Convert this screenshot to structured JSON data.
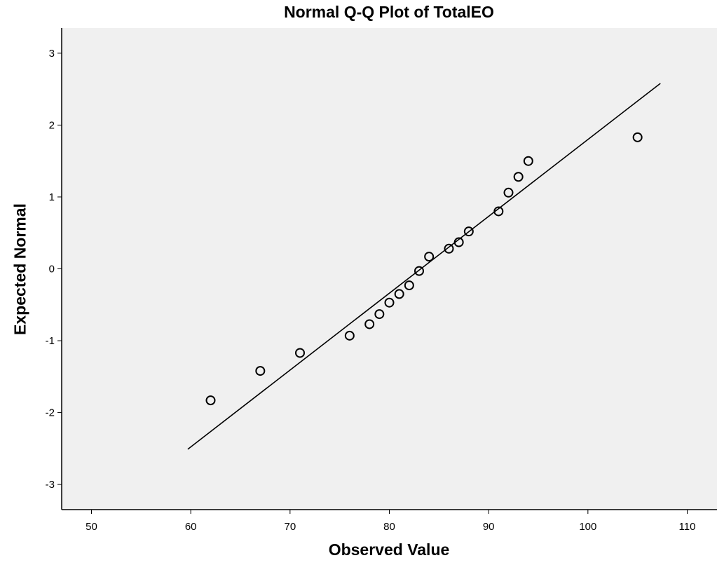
{
  "chart_data": {
    "type": "scatter",
    "title": "Normal Q-Q Plot of TotalEO",
    "xlabel": "Observed Value",
    "ylabel": "Expected Normal",
    "xlim": [
      47,
      113
    ],
    "ylim": [
      -3.35,
      3.35
    ],
    "xticks": [
      50,
      60,
      70,
      80,
      90,
      100,
      110
    ],
    "yticks": [
      -3,
      -2,
      -1,
      0,
      1,
      2,
      3
    ],
    "xtick_labels": [
      "50",
      "60",
      "70",
      "80",
      "90",
      "100",
      "110"
    ],
    "ytick_labels": [
      "-3",
      "-2",
      "-1",
      "0",
      "1",
      "2",
      "3"
    ],
    "grid": false,
    "background": "#f0f0f0",
    "reference_line": {
      "x": [
        59.7,
        107.3
      ],
      "y": [
        -2.51,
        2.58
      ]
    },
    "points": [
      {
        "x": 62,
        "y": -1.83
      },
      {
        "x": 67,
        "y": -1.42
      },
      {
        "x": 71,
        "y": -1.17
      },
      {
        "x": 76,
        "y": -0.93
      },
      {
        "x": 78,
        "y": -0.77
      },
      {
        "x": 79,
        "y": -0.63
      },
      {
        "x": 80,
        "y": -0.47
      },
      {
        "x": 81,
        "y": -0.35
      },
      {
        "x": 82,
        "y": -0.23
      },
      {
        "x": 83,
        "y": -0.03
      },
      {
        "x": 84,
        "y": 0.17
      },
      {
        "x": 86,
        "y": 0.28
      },
      {
        "x": 87,
        "y": 0.37
      },
      {
        "x": 88,
        "y": 0.52
      },
      {
        "x": 91,
        "y": 0.8
      },
      {
        "x": 92,
        "y": 1.06
      },
      {
        "x": 93,
        "y": 1.28
      },
      {
        "x": 94,
        "y": 1.5
      },
      {
        "x": 105,
        "y": 1.83
      }
    ]
  }
}
